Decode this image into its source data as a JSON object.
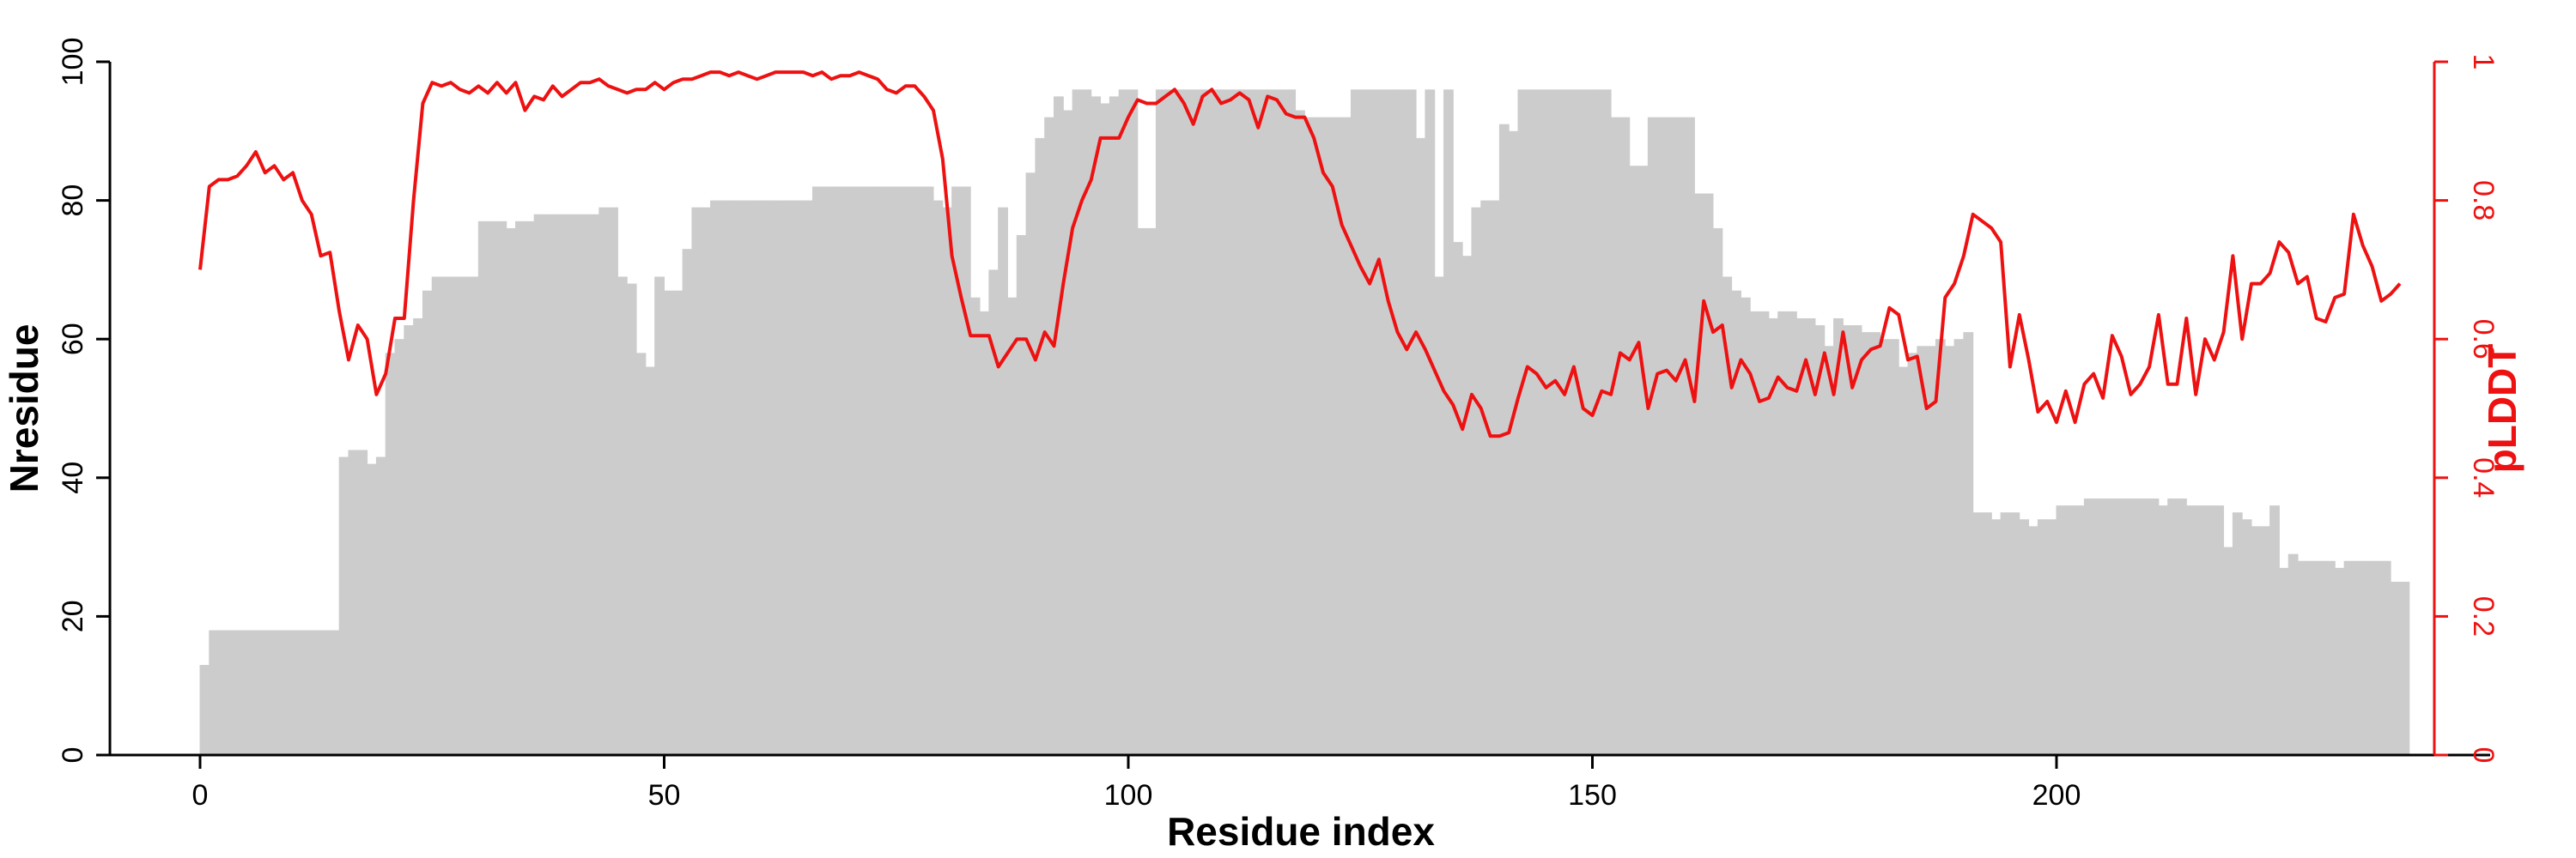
{
  "chart_data": {
    "type": "bar+line",
    "title": "",
    "xlabel": "Residue index",
    "ylabel_left": "Nresidue",
    "ylabel_right": "pLDDT",
    "xlim": [
      0,
      238
    ],
    "ylim_left": [
      0,
      100
    ],
    "ylim_right": [
      0,
      1
    ],
    "x_ticks": [
      "0",
      "50",
      "100",
      "150",
      "200"
    ],
    "x_tick_values": [
      0,
      50,
      100,
      150,
      200
    ],
    "y_left_ticks": [
      "0",
      "20",
      "40",
      "60",
      "80",
      "100"
    ],
    "y_left_tick_values": [
      0,
      20,
      40,
      60,
      80,
      100
    ],
    "y_right_ticks": [
      "0",
      "0.2",
      "0.4",
      "0.6",
      "0.8",
      "1"
    ],
    "y_right_tick_values": [
      0,
      0.2,
      0.4,
      0.6,
      0.8,
      1
    ],
    "grid": false,
    "colors": {
      "bars": "#cccccc",
      "line": "#ee1111",
      "axis_right": "#ee1111",
      "axis_left": "#000000"
    },
    "series": [
      {
        "kind": "bar",
        "values": [
          13,
          18,
          18,
          18,
          18,
          18,
          18,
          18,
          18,
          18,
          18,
          18,
          18,
          18,
          18,
          43,
          44,
          44,
          42,
          43,
          58,
          60,
          62,
          63,
          67,
          69,
          69,
          69,
          69,
          69,
          77,
          77,
          77,
          76,
          77,
          77,
          78,
          78,
          78,
          78,
          78,
          78,
          78,
          79,
          79,
          69,
          68,
          58,
          56,
          69,
          67,
          67,
          73,
          79,
          79,
          80,
          80,
          80,
          80,
          80,
          80,
          80,
          80,
          80,
          80,
          80,
          82,
          82,
          82,
          82,
          82,
          82,
          82,
          82,
          82,
          82,
          82,
          82,
          82,
          80,
          79,
          82,
          82,
          66,
          64,
          70,
          79,
          66,
          75,
          84,
          89,
          92,
          95,
          93,
          96,
          96,
          95,
          94,
          95,
          96,
          96,
          76,
          76,
          96,
          96,
          96,
          96,
          96,
          96,
          96,
          96,
          96,
          96,
          96,
          96,
          96,
          96,
          96,
          93,
          92,
          92,
          92,
          92,
          92,
          96,
          96,
          96,
          96,
          96,
          96,
          96,
          89,
          96,
          69,
          96,
          74,
          72,
          79,
          80,
          80,
          91,
          90,
          96,
          96,
          96,
          96,
          96,
          96,
          96,
          96,
          96,
          96,
          92,
          92,
          85,
          85,
          92,
          92,
          92,
          92,
          92,
          81,
          81,
          76,
          69,
          67,
          66,
          64,
          64,
          63,
          64,
          64,
          63,
          63,
          62,
          59,
          63,
          62,
          62,
          61,
          61,
          60,
          60,
          56,
          58,
          59,
          59,
          60,
          59,
          60,
          61,
          35,
          35,
          34,
          35,
          35,
          34,
          33,
          34,
          34,
          36,
          36,
          36,
          37,
          37,
          37,
          37,
          37,
          37,
          37,
          37,
          36,
          37,
          37,
          36,
          36,
          36,
          36,
          30,
          35,
          34,
          33,
          33,
          36,
          27,
          29,
          28,
          28,
          28,
          28,
          27,
          28,
          28,
          28,
          28,
          28,
          25,
          25
        ]
      },
      {
        "kind": "line",
        "values": [
          0.7,
          0.82,
          0.83,
          0.83,
          0.835,
          0.85,
          0.87,
          0.84,
          0.85,
          0.83,
          0.84,
          0.8,
          0.78,
          0.72,
          0.725,
          0.64,
          0.57,
          0.62,
          0.6,
          0.52,
          0.55,
          0.63,
          0.63,
          0.8,
          0.94,
          0.97,
          0.965,
          0.97,
          0.96,
          0.955,
          0.965,
          0.955,
          0.97,
          0.955,
          0.97,
          0.93,
          0.95,
          0.945,
          0.965,
          0.95,
          0.96,
          0.97,
          0.97,
          0.975,
          0.965,
          0.96,
          0.955,
          0.96,
          0.96,
          0.97,
          0.96,
          0.97,
          0.975,
          0.975,
          0.98,
          0.985,
          0.985,
          0.98,
          0.985,
          0.98,
          0.975,
          0.98,
          0.985,
          0.985,
          0.985,
          0.985,
          0.98,
          0.985,
          0.975,
          0.98,
          0.98,
          0.985,
          0.98,
          0.975,
          0.96,
          0.955,
          0.965,
          0.965,
          0.95,
          0.93,
          0.86,
          0.72,
          0.66,
          0.605,
          0.605,
          0.605,
          0.56,
          0.58,
          0.6,
          0.6,
          0.57,
          0.61,
          0.59,
          0.68,
          0.76,
          0.8,
          0.83,
          0.89,
          0.89,
          0.89,
          0.92,
          0.945,
          0.94,
          0.94,
          0.95,
          0.96,
          0.94,
          0.91,
          0.95,
          0.96,
          0.94,
          0.945,
          0.955,
          0.945,
          0.905,
          0.95,
          0.945,
          0.925,
          0.92,
          0.92,
          0.89,
          0.84,
          0.82,
          0.765,
          0.735,
          0.705,
          0.68,
          0.715,
          0.655,
          0.61,
          0.585,
          0.61,
          0.585,
          0.555,
          0.525,
          0.505,
          0.47,
          0.52,
          0.5,
          0.46,
          0.46,
          0.465,
          0.515,
          0.56,
          0.55,
          0.53,
          0.54,
          0.52,
          0.56,
          0.5,
          0.49,
          0.525,
          0.52,
          0.58,
          0.57,
          0.595,
          0.5,
          0.55,
          0.555,
          0.54,
          0.57,
          0.51,
          0.655,
          0.61,
          0.62,
          0.53,
          0.57,
          0.55,
          0.51,
          0.515,
          0.545,
          0.53,
          0.525,
          0.57,
          0.52,
          0.58,
          0.52,
          0.61,
          0.53,
          0.57,
          0.585,
          0.59,
          0.645,
          0.635,
          0.57,
          0.575,
          0.5,
          0.51,
          0.66,
          0.68,
          0.72,
          0.78,
          0.77,
          0.76,
          0.74,
          0.56,
          0.635,
          0.57,
          0.495,
          0.51,
          0.48,
          0.525,
          0.48,
          0.535,
          0.55,
          0.515,
          0.605,
          0.575,
          0.52,
          0.535,
          0.56,
          0.635,
          0.535,
          0.535,
          0.63,
          0.52,
          0.6,
          0.57,
          0.61,
          0.72,
          0.6,
          0.68,
          0.68,
          0.695,
          0.74,
          0.725,
          0.68,
          0.69,
          0.63,
          0.625,
          0.66,
          0.665,
          0.78,
          0.735,
          0.705,
          0.655,
          0.665,
          0.68
        ]
      }
    ]
  }
}
